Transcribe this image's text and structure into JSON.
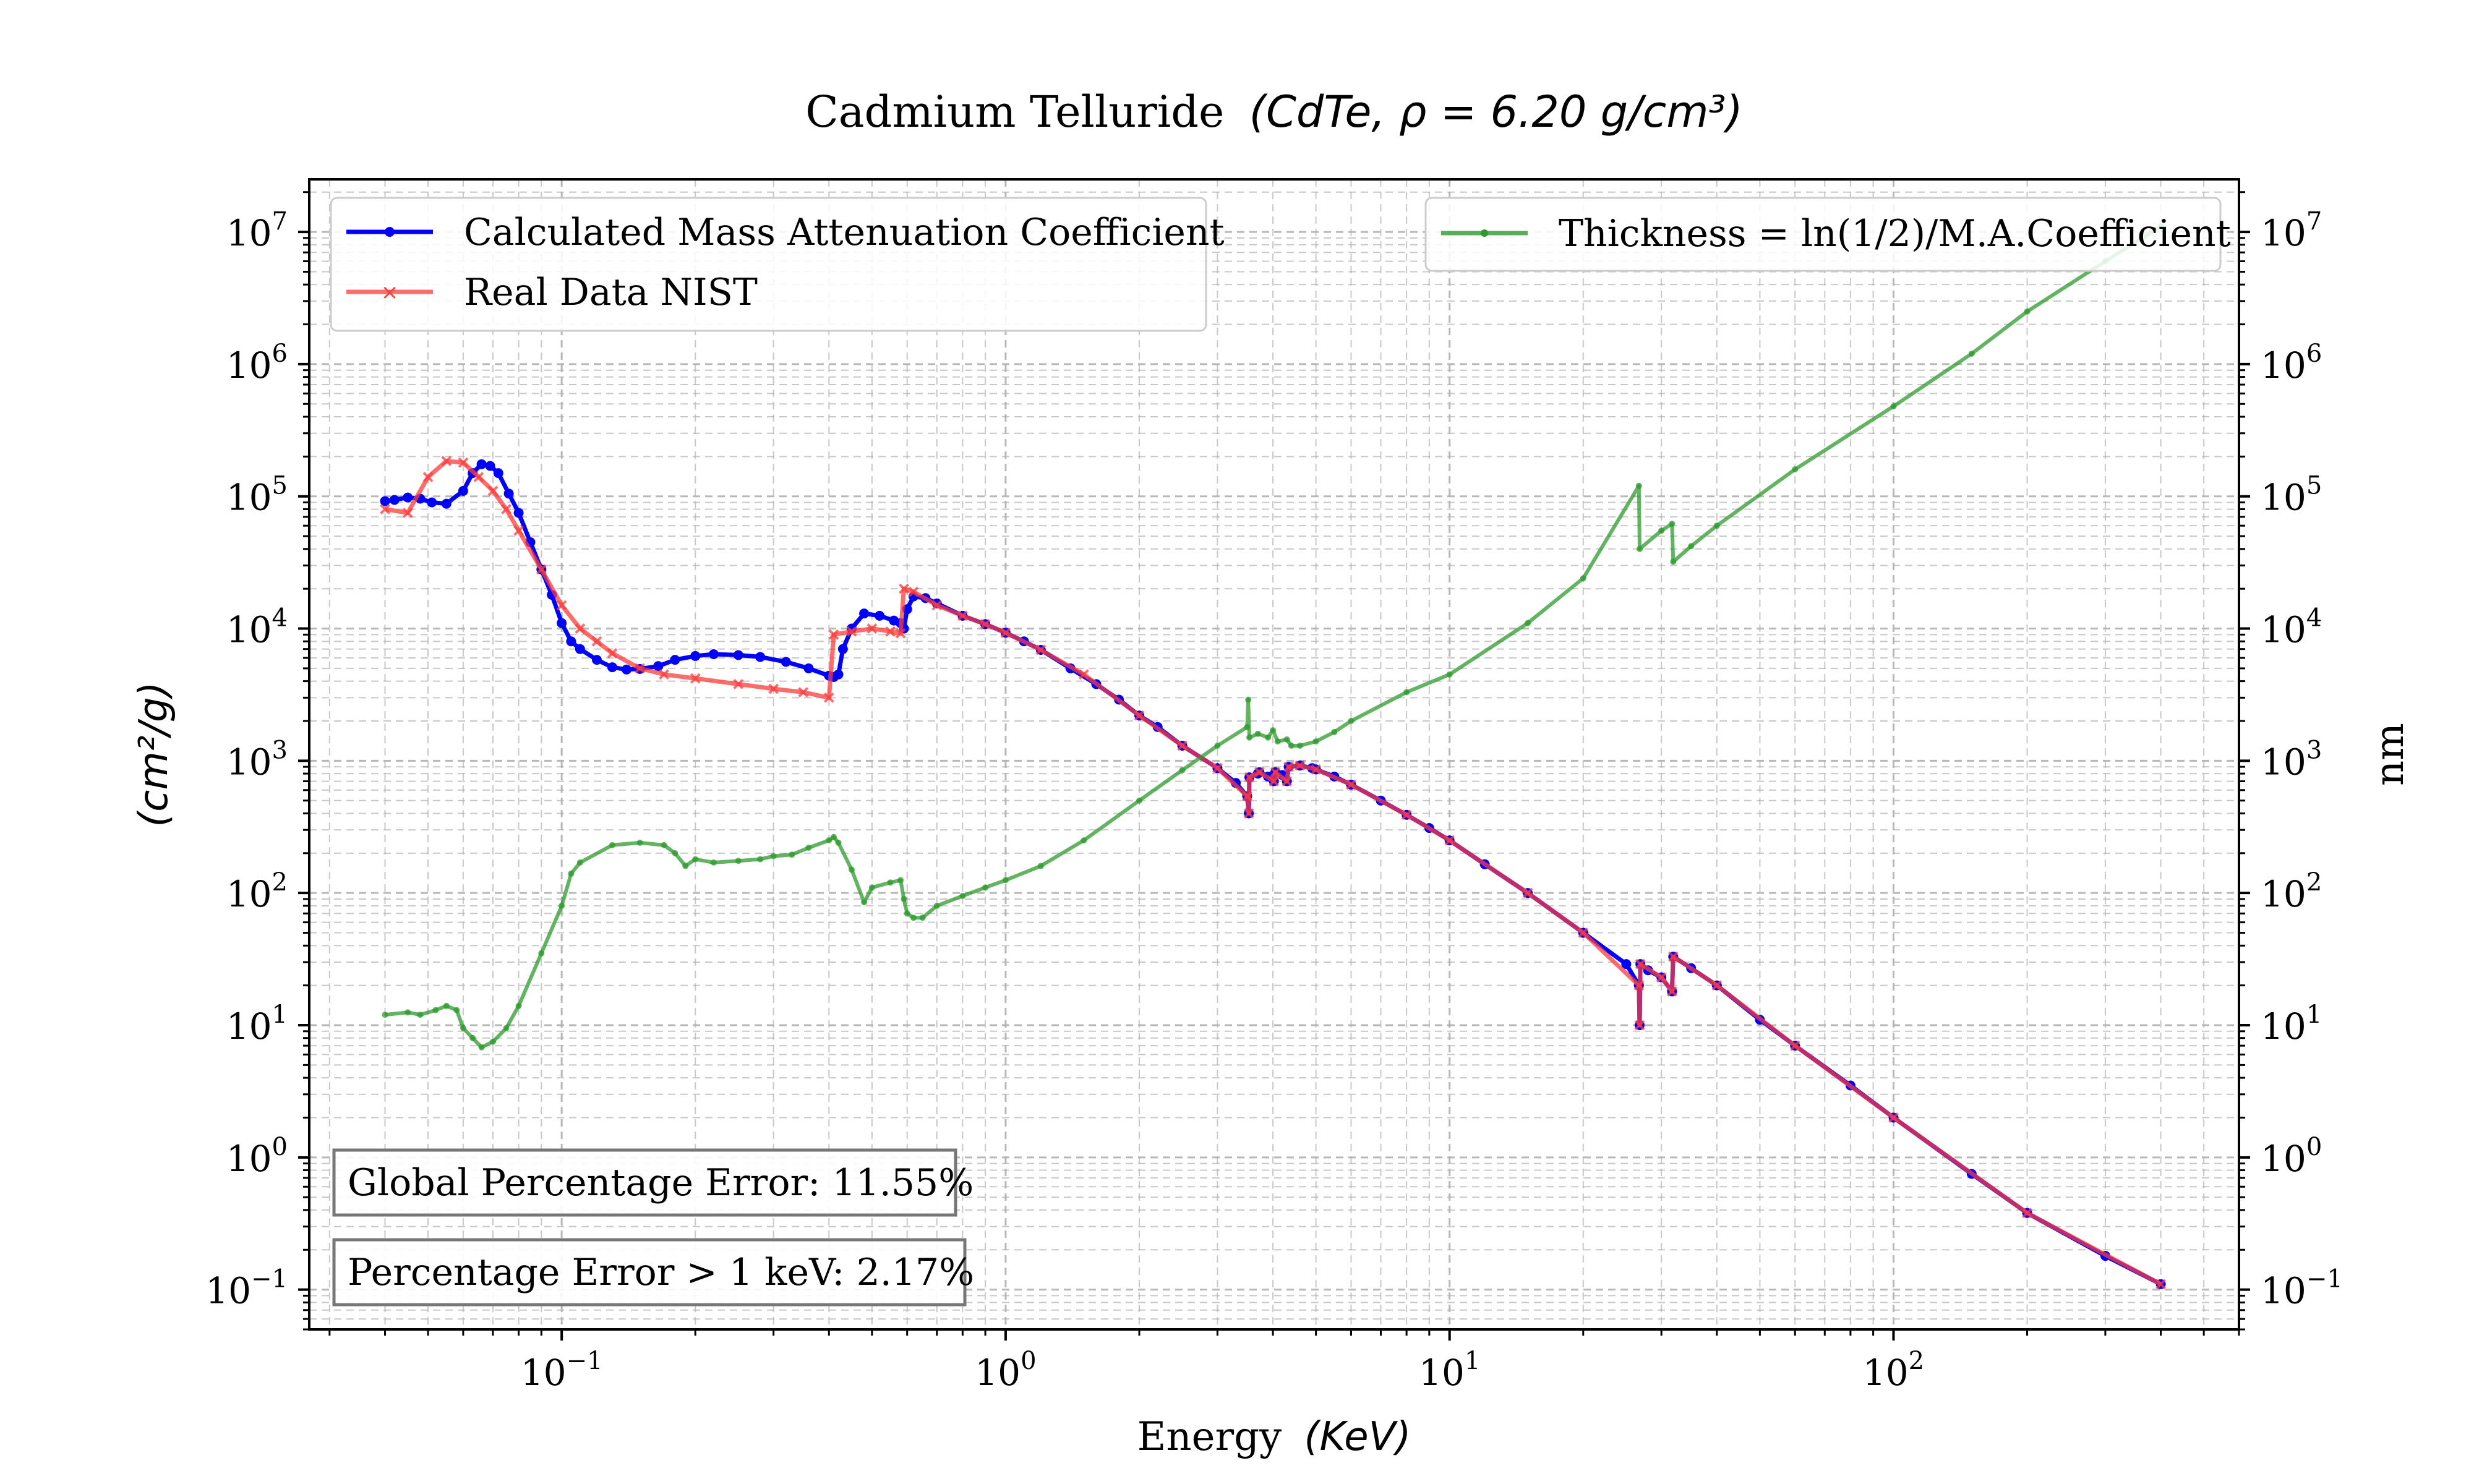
{
  "chart_data": {
    "type": "line",
    "title": "Cadmium Telluride",
    "title_formula": "(CdTe,  ρ = 6.20 g/cm³)",
    "xlabel": "Energy",
    "xlabel_unit": "(KeV)",
    "ylabel_left": "(cm²/g)",
    "ylabel_right": "nm",
    "xscale": "log",
    "yscale": "log",
    "xlim": [
      0.027,
      600
    ],
    "ylim": [
      0.05,
      25000000
    ],
    "grid": true,
    "x_tick_labels": [
      "10",
      "10",
      "10",
      "10"
    ],
    "x_tick_exponents": [
      "−1",
      "0",
      "1",
      "2"
    ],
    "x_tick_values": [
      0.1,
      1,
      10,
      100
    ],
    "y_tick_labels": [
      "10",
      "10",
      "10",
      "10",
      "10",
      "10",
      "10",
      "10",
      "10"
    ],
    "y_tick_exponents": [
      "−1",
      "0",
      "1",
      "2",
      "3",
      "4",
      "5",
      "6",
      "7"
    ],
    "y_tick_values": [
      0.1,
      1,
      10,
      100,
      1000,
      10000,
      100000,
      1000000,
      10000000
    ],
    "legend_left": {
      "placement": "upper-left",
      "entries": [
        "Calculated Mass Attenuation Coefficient",
        "Real Data NIST"
      ]
    },
    "legend_right": {
      "placement": "upper-right",
      "entries": [
        "Thickness = ln(1/2)/M.A.Coefficient"
      ]
    },
    "annotations": [
      "Global Percentage Error: 11.55%",
      "Percentage Error > 1 keV: 2.17%"
    ],
    "colors": {
      "calculated": "#0000ff",
      "nist": "#ff3b3b",
      "thickness": "#2e9a2e"
    },
    "series": [
      {
        "name": "Calculated Mass Attenuation Coefficient",
        "points": [
          [
            0.04,
            92000
          ],
          [
            0.042,
            94000
          ],
          [
            0.045,
            98000
          ],
          [
            0.048,
            96000
          ],
          [
            0.051,
            90000
          ],
          [
            0.055,
            88000
          ],
          [
            0.06,
            110000
          ],
          [
            0.063,
            150000
          ],
          [
            0.066,
            175000
          ],
          [
            0.069,
            170000
          ],
          [
            0.072,
            150000
          ],
          [
            0.076,
            105000
          ],
          [
            0.08,
            75000
          ],
          [
            0.085,
            45000
          ],
          [
            0.09,
            28000
          ],
          [
            0.095,
            18000
          ],
          [
            0.1,
            11000
          ],
          [
            0.105,
            8000
          ],
          [
            0.11,
            7000
          ],
          [
            0.12,
            5800
          ],
          [
            0.13,
            5100
          ],
          [
            0.14,
            4900
          ],
          [
            0.15,
            4950
          ],
          [
            0.165,
            5200
          ],
          [
            0.18,
            5800
          ],
          [
            0.2,
            6200
          ],
          [
            0.22,
            6400
          ],
          [
            0.25,
            6300
          ],
          [
            0.28,
            6100
          ],
          [
            0.32,
            5600
          ],
          [
            0.36,
            5000
          ],
          [
            0.4,
            4400
          ],
          [
            0.41,
            4300
          ],
          [
            0.42,
            4500
          ],
          [
            0.43,
            7000
          ],
          [
            0.45,
            10000
          ],
          [
            0.48,
            13000
          ],
          [
            0.52,
            12500
          ],
          [
            0.56,
            11500
          ],
          [
            0.58,
            11000
          ],
          [
            0.59,
            10000
          ],
          [
            0.6,
            14000
          ],
          [
            0.62,
            17500
          ],
          [
            0.66,
            17000
          ],
          [
            0.7,
            15500
          ],
          [
            0.8,
            12500
          ],
          [
            0.9,
            10800
          ],
          [
            1.0,
            9300
          ],
          [
            1.1,
            8000
          ],
          [
            1.2,
            6900
          ],
          [
            1.4,
            5000
          ],
          [
            1.6,
            3800
          ],
          [
            1.8,
            2900
          ],
          [
            2.0,
            2200
          ],
          [
            2.2,
            1800
          ],
          [
            2.5,
            1300
          ],
          [
            3.0,
            880
          ],
          [
            3.3,
            680
          ],
          [
            3.5,
            540
          ],
          [
            3.53,
            400
          ],
          [
            3.54,
            750
          ],
          [
            3.7,
            800
          ],
          [
            3.73,
            820
          ],
          [
            3.9,
            760
          ],
          [
            4.02,
            700
          ],
          [
            4.05,
            820
          ],
          [
            4.2,
            780
          ],
          [
            4.3,
            700
          ],
          [
            4.34,
            900
          ],
          [
            4.6,
            920
          ],
          [
            4.9,
            880
          ],
          [
            5.0,
            860
          ],
          [
            5.5,
            760
          ],
          [
            6.0,
            660
          ],
          [
            7.0,
            500
          ],
          [
            8.0,
            390
          ],
          [
            9.0,
            310
          ],
          [
            10,
            250
          ],
          [
            12,
            165
          ],
          [
            15,
            100
          ],
          [
            20,
            50
          ],
          [
            25,
            29
          ],
          [
            26.7,
            20
          ],
          [
            26.8,
            10
          ],
          [
            26.9,
            29
          ],
          [
            28,
            26
          ],
          [
            30,
            23
          ],
          [
            31.7,
            18
          ],
          [
            31.9,
            33
          ],
          [
            35,
            27
          ],
          [
            40,
            20
          ],
          [
            50,
            11
          ],
          [
            60,
            7
          ],
          [
            80,
            3.5
          ],
          [
            100,
            2.0
          ],
          [
            150,
            0.75
          ],
          [
            200,
            0.38
          ],
          [
            300,
            0.18
          ],
          [
            400,
            0.11
          ]
        ]
      },
      {
        "name": "Real Data NIST",
        "points": [
          [
            0.04,
            80000
          ],
          [
            0.045,
            75000
          ],
          [
            0.05,
            140000
          ],
          [
            0.055,
            185000
          ],
          [
            0.06,
            180000
          ],
          [
            0.065,
            140000
          ],
          [
            0.07,
            110000
          ],
          [
            0.075,
            80000
          ],
          [
            0.08,
            55000
          ],
          [
            0.09,
            28000
          ],
          [
            0.1,
            15000
          ],
          [
            0.11,
            10000
          ],
          [
            0.12,
            8000
          ],
          [
            0.13,
            6500
          ],
          [
            0.15,
            5000
          ],
          [
            0.17,
            4500
          ],
          [
            0.2,
            4200
          ],
          [
            0.25,
            3800
          ],
          [
            0.3,
            3500
          ],
          [
            0.35,
            3300
          ],
          [
            0.4,
            3000
          ],
          [
            0.41,
            9000
          ],
          [
            0.45,
            9500
          ],
          [
            0.5,
            10000
          ],
          [
            0.55,
            9500
          ],
          [
            0.58,
            9200
          ],
          [
            0.59,
            20000
          ],
          [
            0.62,
            19000
          ],
          [
            0.7,
            15000
          ],
          [
            0.8,
            12500
          ],
          [
            0.9,
            10800
          ],
          [
            1.0,
            9300
          ],
          [
            1.2,
            6900
          ],
          [
            1.5,
            4500
          ],
          [
            2.0,
            2200
          ],
          [
            2.5,
            1300
          ],
          [
            3.0,
            880
          ],
          [
            3.5,
            540
          ],
          [
            3.53,
            400
          ],
          [
            3.54,
            750
          ],
          [
            3.73,
            820
          ],
          [
            4.02,
            700
          ],
          [
            4.05,
            820
          ],
          [
            4.3,
            700
          ],
          [
            4.34,
            900
          ],
          [
            4.6,
            920
          ],
          [
            5.0,
            860
          ],
          [
            6.0,
            660
          ],
          [
            8.0,
            390
          ],
          [
            10,
            250
          ],
          [
            15,
            100
          ],
          [
            20,
            50
          ],
          [
            26.7,
            20
          ],
          [
            26.8,
            10
          ],
          [
            26.9,
            29
          ],
          [
            30,
            23
          ],
          [
            31.7,
            18
          ],
          [
            31.9,
            33
          ],
          [
            40,
            20
          ],
          [
            60,
            7
          ],
          [
            100,
            2.0
          ],
          [
            200,
            0.38
          ],
          [
            400,
            0.11
          ]
        ]
      },
      {
        "name": "Thickness = ln(1/2)/M.A.Coefficient",
        "points": [
          [
            0.04,
            12
          ],
          [
            0.045,
            12.5
          ],
          [
            0.048,
            12
          ],
          [
            0.052,
            13
          ],
          [
            0.055,
            14
          ],
          [
            0.058,
            13
          ],
          [
            0.06,
            9.5
          ],
          [
            0.063,
            8
          ],
          [
            0.066,
            6.8
          ],
          [
            0.07,
            7.5
          ],
          [
            0.075,
            9.5
          ],
          [
            0.08,
            14
          ],
          [
            0.09,
            35
          ],
          [
            0.1,
            80
          ],
          [
            0.105,
            140
          ],
          [
            0.11,
            170
          ],
          [
            0.13,
            230
          ],
          [
            0.15,
            240
          ],
          [
            0.17,
            230
          ],
          [
            0.18,
            200
          ],
          [
            0.19,
            160
          ],
          [
            0.2,
            180
          ],
          [
            0.22,
            170
          ],
          [
            0.25,
            175
          ],
          [
            0.28,
            180
          ],
          [
            0.3,
            190
          ],
          [
            0.33,
            195
          ],
          [
            0.36,
            220
          ],
          [
            0.4,
            250
          ],
          [
            0.41,
            265
          ],
          [
            0.42,
            240
          ],
          [
            0.45,
            150
          ],
          [
            0.48,
            85
          ],
          [
            0.5,
            110
          ],
          [
            0.55,
            120
          ],
          [
            0.58,
            125
          ],
          [
            0.59,
            90
          ],
          [
            0.6,
            70
          ],
          [
            0.62,
            65
          ],
          [
            0.65,
            65
          ],
          [
            0.7,
            80
          ],
          [
            0.8,
            95
          ],
          [
            0.9,
            110
          ],
          [
            1.0,
            125
          ],
          [
            1.2,
            160
          ],
          [
            1.5,
            250
          ],
          [
            2.0,
            500
          ],
          [
            2.5,
            850
          ],
          [
            3.0,
            1300
          ],
          [
            3.5,
            1800
          ],
          [
            3.52,
            2900
          ],
          [
            3.54,
            1500
          ],
          [
            3.7,
            1600
          ],
          [
            3.9,
            1500
          ],
          [
            4.0,
            1700
          ],
          [
            4.1,
            1400
          ],
          [
            4.3,
            1450
          ],
          [
            4.4,
            1300
          ],
          [
            4.6,
            1300
          ],
          [
            5.0,
            1400
          ],
          [
            5.5,
            1650
          ],
          [
            6,
            2000
          ],
          [
            8,
            3300
          ],
          [
            10,
            4500
          ],
          [
            15,
            11000
          ],
          [
            20,
            24000
          ],
          [
            26.7,
            120000
          ],
          [
            26.8,
            40000
          ],
          [
            30,
            55000
          ],
          [
            31.7,
            62000
          ],
          [
            31.9,
            32000
          ],
          [
            35,
            42000
          ],
          [
            40,
            60000
          ],
          [
            60,
            160000
          ],
          [
            100,
            480000
          ],
          [
            150,
            1200000
          ],
          [
            200,
            2500000
          ],
          [
            300,
            6000000
          ],
          [
            400,
            11000000
          ]
        ]
      }
    ]
  }
}
